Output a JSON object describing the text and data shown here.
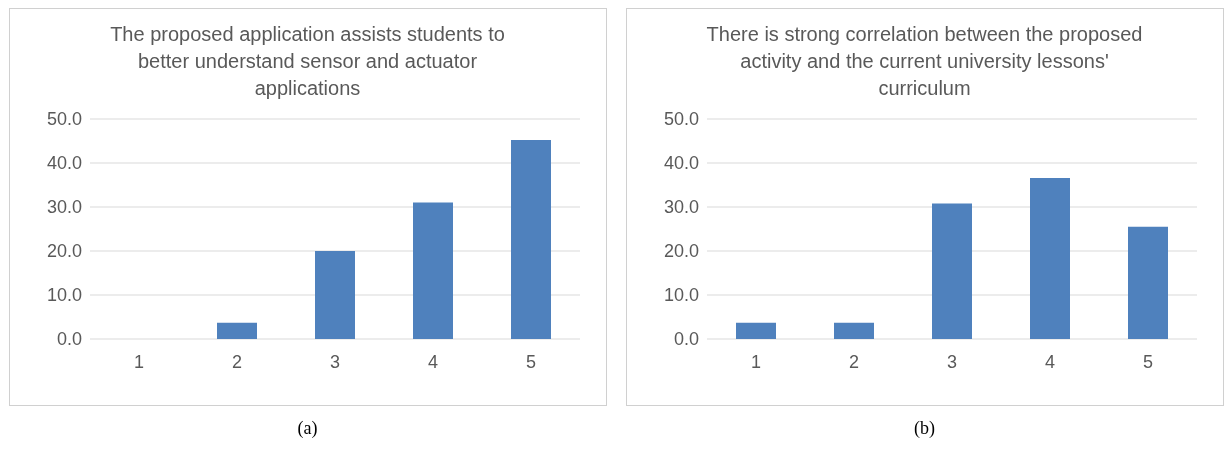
{
  "chart_data": [
    {
      "type": "bar",
      "title": "The proposed application assists students to better understand sensor and actuator applications",
      "categories": [
        "1",
        "2",
        "3",
        "4",
        "5"
      ],
      "values": [
        0,
        3.7,
        20.0,
        31.0,
        45.2
      ],
      "color": "#4f81bd",
      "ylim": [
        0,
        50
      ],
      "yticks": [
        {
          "value": 0,
          "label": "0.0"
        },
        {
          "value": 10,
          "label": "10.0"
        },
        {
          "value": 20,
          "label": "20.0"
        },
        {
          "value": 30,
          "label": "30.0"
        },
        {
          "value": 40,
          "label": "40.0"
        },
        {
          "value": 50,
          "label": "50.0"
        }
      ],
      "grid": "y",
      "annotations": [
        "(a)"
      ]
    },
    {
      "type": "bar",
      "title": "There is strong correlation between the proposed activity and the current university lessons' curriculum",
      "categories": [
        "1",
        "2",
        "3",
        "4",
        "5"
      ],
      "values": [
        3.7,
        3.7,
        30.8,
        36.6,
        25.5
      ],
      "color": "#4f81bd",
      "ylim": [
        0,
        50
      ],
      "yticks": [
        {
          "value": 0,
          "label": "0.0"
        },
        {
          "value": 10,
          "label": "10.0"
        },
        {
          "value": 20,
          "label": "20.0"
        },
        {
          "value": 30,
          "label": "30.0"
        },
        {
          "value": 40,
          "label": "40.0"
        },
        {
          "value": 50,
          "label": "50.0"
        }
      ],
      "grid": "y",
      "annotations": [
        "(b)"
      ]
    }
  ]
}
